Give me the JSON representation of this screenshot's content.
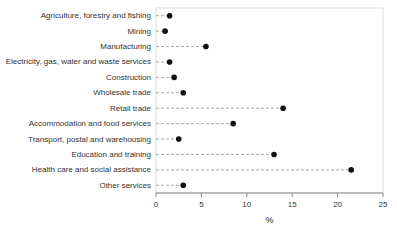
{
  "chart_data": {
    "type": "dot",
    "orientation": "horizontal",
    "categories": [
      "Agriculture, forestry and fishing",
      "Mining",
      "Manufacturing",
      "Electricity, gas, water and waste services",
      "Construction",
      "Wholesale trade",
      "Retail trade",
      "Accommodation and food services",
      "Transport, postal and warehousing",
      "Education and training",
      "Health care and social assistance",
      "Other services"
    ],
    "values": [
      1.5,
      1.0,
      5.5,
      1.5,
      2.0,
      3.0,
      14.0,
      8.5,
      2.5,
      13.0,
      21.5,
      3.0
    ],
    "xlim": [
      0,
      25
    ],
    "xticks": [
      0,
      5,
      10,
      15,
      20,
      25
    ],
    "xlabel": "%",
    "color": "#111111",
    "line_style": "dashed",
    "grid": false
  }
}
